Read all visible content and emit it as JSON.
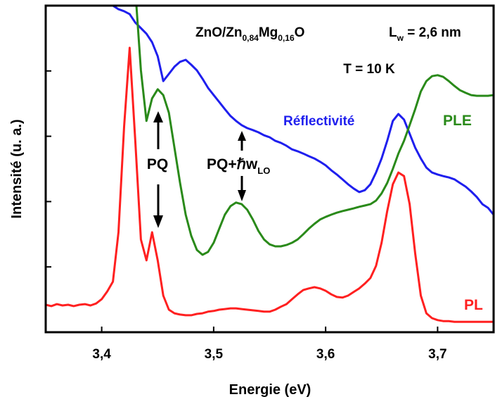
{
  "chart_data": {
    "type": "line",
    "x_label": "Energie (eV)",
    "y_label": "Intensité (u. a.)",
    "annotations": {
      "sample": [
        "ZnO/Zn",
        "0,84",
        "Mg",
        "0,16",
        "O"
      ],
      "well": [
        "L",
        "w",
        " = 2,6 nm"
      ],
      "temperature": "T = 10 K",
      "pq": "PQ",
      "pq_lo": [
        "PQ+ℏw",
        "LO"
      ]
    },
    "x": [
      3.35,
      3.355,
      3.36,
      3.365,
      3.37,
      3.375,
      3.38,
      3.385,
      3.39,
      3.395,
      3.4,
      3.405,
      3.41,
      3.415,
      3.42,
      3.425,
      3.43,
      3.435,
      3.44,
      3.445,
      3.45,
      3.455,
      3.46,
      3.465,
      3.47,
      3.475,
      3.48,
      3.485,
      3.49,
      3.495,
      3.5,
      3.505,
      3.51,
      3.515,
      3.52,
      3.525,
      3.53,
      3.535,
      3.54,
      3.545,
      3.55,
      3.555,
      3.56,
      3.565,
      3.57,
      3.575,
      3.58,
      3.585,
      3.59,
      3.595,
      3.6,
      3.605,
      3.61,
      3.615,
      3.62,
      3.625,
      3.63,
      3.635,
      3.64,
      3.645,
      3.65,
      3.655,
      3.66,
      3.665,
      3.67,
      3.675,
      3.68,
      3.685,
      3.69,
      3.695,
      3.7,
      3.705,
      3.71,
      3.715,
      3.72,
      3.725,
      3.73,
      3.735,
      3.74,
      3.745,
      3.75
    ],
    "series": [
      {
        "name": "Réflectivité",
        "color": "#1f1fee",
        "values": [
          null,
          null,
          null,
          null,
          null,
          null,
          null,
          null,
          null,
          null,
          null,
          100.6,
          100.0,
          98.9,
          98.3,
          97.4,
          94.8,
          93.1,
          91.4,
          88.8,
          84.5,
          76.9,
          79.1,
          81.3,
          82.8,
          83.4,
          81.9,
          80.2,
          77.6,
          74.8,
          72.6,
          70.5,
          68.3,
          66.2,
          64.7,
          63.4,
          62.5,
          61.9,
          61.2,
          60.3,
          59.7,
          58.6,
          58.0,
          57.1,
          56.0,
          55.4,
          54.7,
          53.9,
          53.2,
          52.2,
          51.1,
          49.6,
          48.3,
          46.8,
          45.3,
          44.0,
          42.9,
          43.5,
          45.3,
          48.9,
          53.2,
          58.6,
          64.7,
          66.8,
          65.1,
          60.8,
          56.5,
          53.2,
          50.4,
          48.9,
          48.3,
          47.8,
          47.4,
          46.8,
          45.7,
          44.6,
          43.1,
          41.4,
          39.2,
          38.1,
          36.0
        ]
      },
      {
        "name": "PLE",
        "color": "#2a8a1a",
        "values": [
          null,
          null,
          null,
          null,
          null,
          null,
          null,
          null,
          null,
          null,
          null,
          null,
          null,
          null,
          null,
          null,
          105.0,
          80.2,
          64.7,
          71.6,
          74.4,
          72.6,
          67.2,
          56.5,
          45.7,
          36.0,
          29.5,
          25.2,
          23.7,
          24.6,
          27.4,
          31.7,
          36.0,
          38.6,
          39.7,
          39.2,
          37.5,
          34.5,
          31.0,
          28.4,
          26.9,
          26.3,
          26.3,
          26.7,
          27.4,
          28.4,
          30.0,
          31.7,
          33.2,
          34.5,
          35.3,
          36.0,
          36.6,
          37.1,
          37.5,
          37.9,
          38.4,
          38.8,
          39.2,
          40.3,
          42.5,
          45.7,
          50.0,
          54.7,
          58.6,
          63.4,
          68.3,
          73.7,
          76.9,
          78.4,
          78.7,
          78.2,
          76.9,
          75.4,
          74.1,
          73.3,
          72.6,
          72.4,
          72.4,
          72.4,
          72.6
        ]
      },
      {
        "name": "PL",
        "color": "#ff2020",
        "values": [
          8.4,
          8.0,
          8.6,
          8.2,
          8.4,
          8.0,
          8.4,
          8.6,
          8.2,
          8.8,
          10.1,
          12.5,
          15.5,
          30.6,
          62.9,
          87.1,
          58.6,
          28.4,
          22.0,
          30.6,
          22.0,
          11.2,
          6.9,
          5.8,
          5.4,
          5.2,
          5.2,
          5.6,
          5.8,
          6.3,
          6.5,
          6.9,
          7.1,
          7.3,
          7.3,
          7.1,
          6.9,
          6.7,
          6.5,
          6.3,
          6.3,
          6.9,
          7.8,
          8.6,
          10.1,
          11.6,
          12.9,
          13.4,
          13.8,
          13.4,
          12.7,
          11.6,
          10.8,
          10.6,
          11.2,
          12.3,
          13.4,
          14.9,
          16.6,
          20.3,
          27.4,
          37.1,
          45.3,
          48.9,
          47.8,
          39.2,
          24.1,
          11.2,
          5.8,
          4.3,
          3.7,
          3.4,
          3.4,
          3.2,
          3.2,
          3.2,
          3.2,
          3.2,
          3.2,
          3.2,
          3.2
        ]
      }
    ],
    "xlim": [
      3.35,
      3.75
    ],
    "xticks": [
      {
        "value": 3.4,
        "label": "3,4"
      },
      {
        "value": 3.5,
        "label": "3,5"
      },
      {
        "value": 3.6,
        "label": "3,6"
      },
      {
        "value": 3.7,
        "label": "3,7"
      }
    ],
    "ylim": [
      0,
      100
    ],
    "yticks": [
      20,
      40,
      60,
      80
    ]
  }
}
